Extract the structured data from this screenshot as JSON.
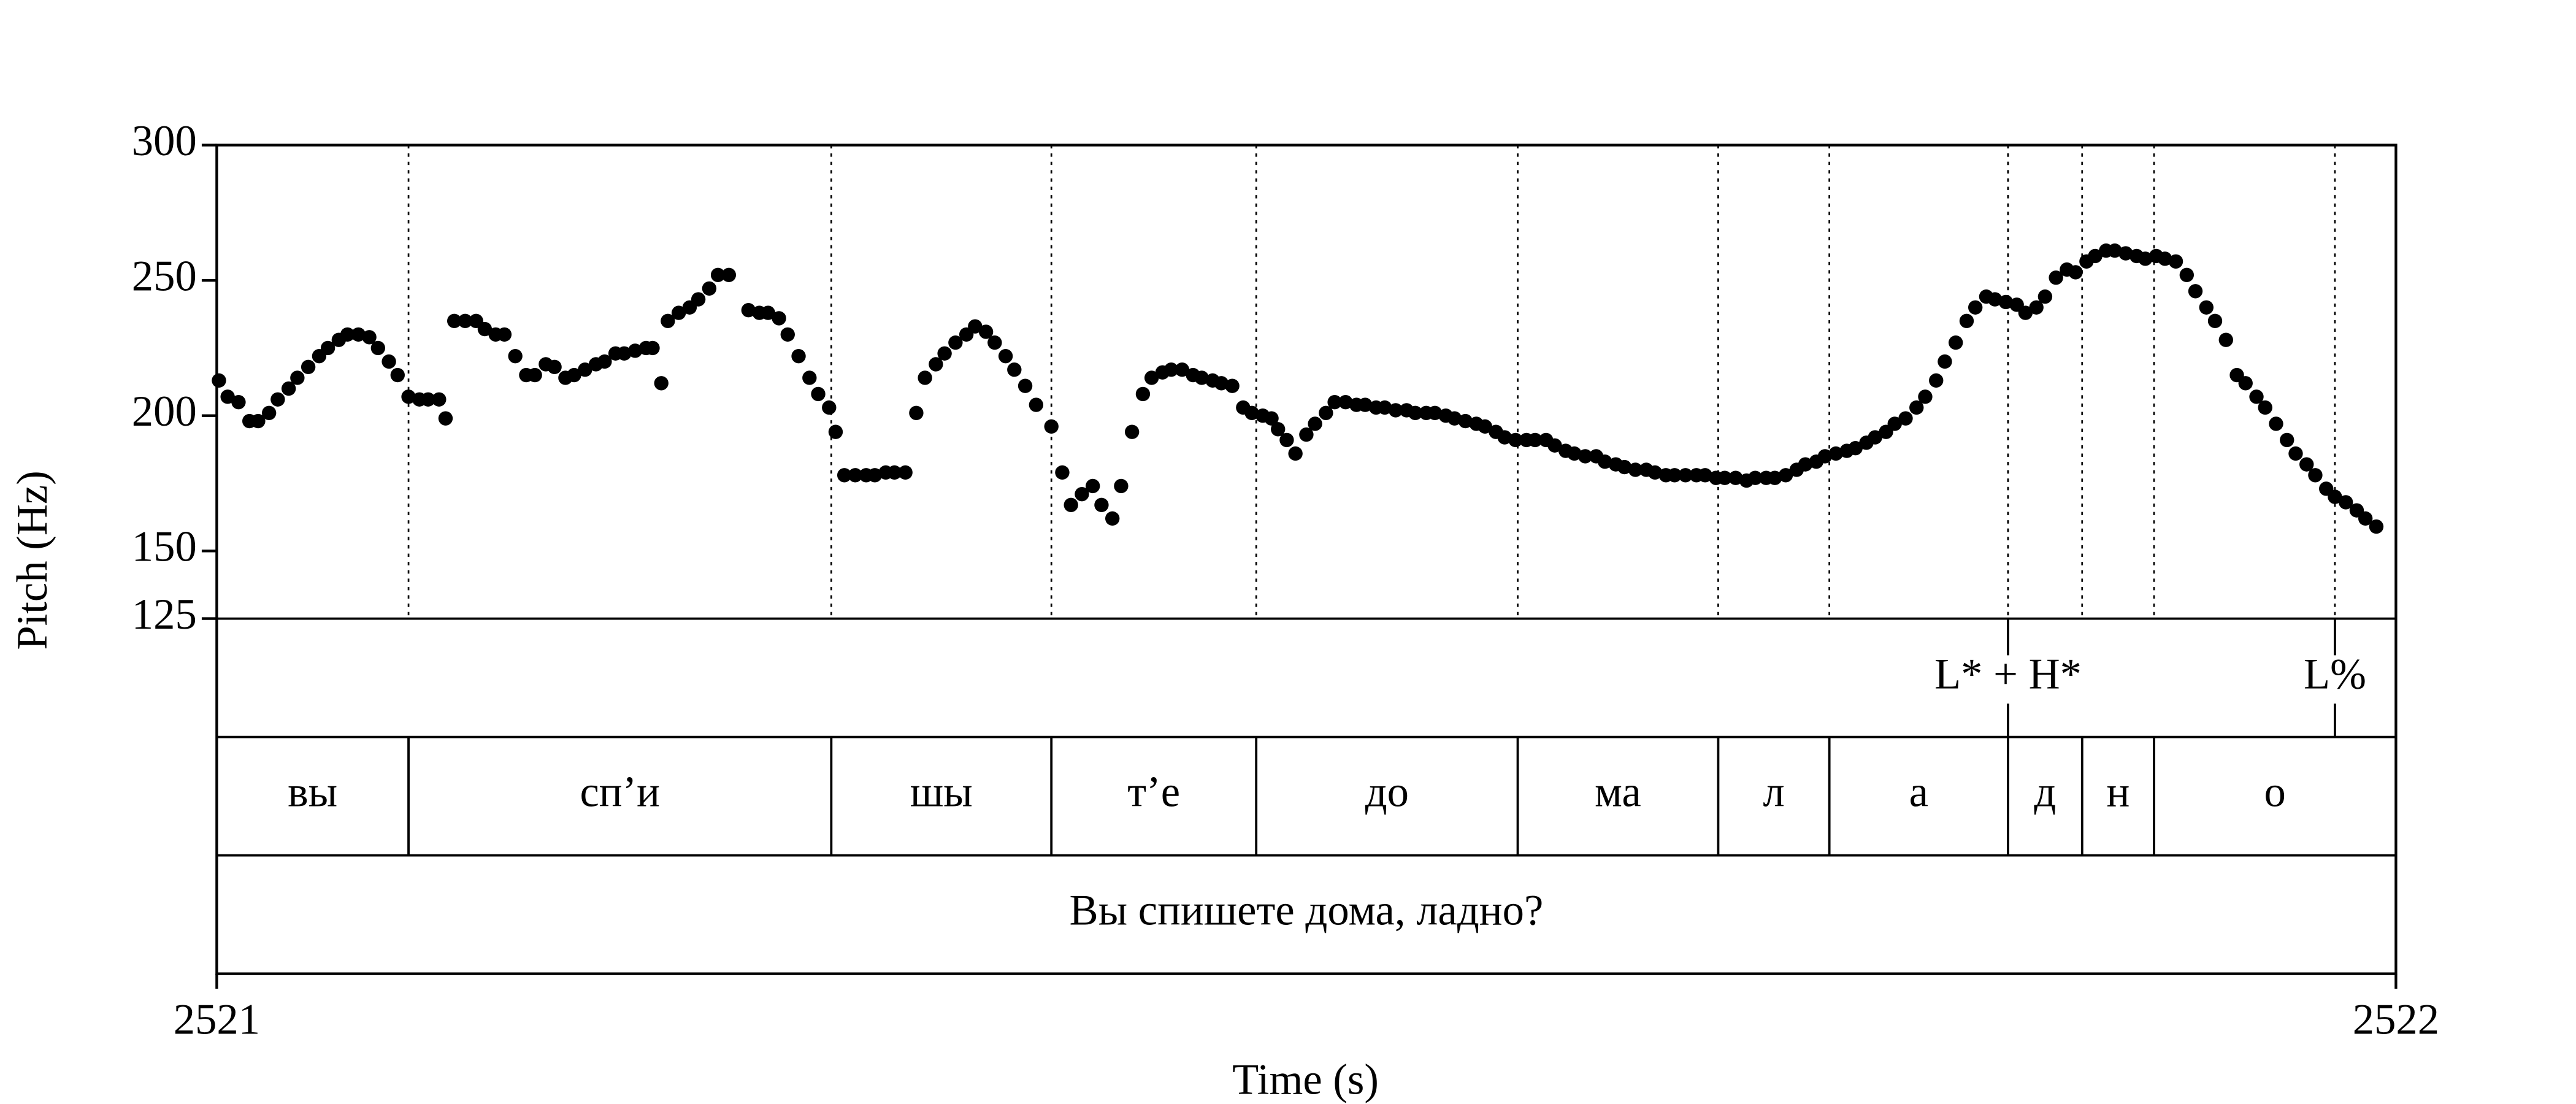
{
  "chart_data": {
    "type": "scatter",
    "xlabel": "Time (s)",
    "ylabel": "Pitch (Hz)",
    "xlim": [
      2521,
      2522
    ],
    "xticks": [
      2521,
      2522
    ],
    "ylim": [
      125,
      300
    ],
    "yticks": [
      125,
      150,
      200,
      250,
      300
    ],
    "x": [
      2521.001,
      2521.005,
      2521.01,
      2521.015,
      2521.019,
      2521.024,
      2521.028,
      2521.033,
      2521.037,
      2521.042,
      2521.047,
      2521.051,
      2521.056,
      2521.06,
      2521.065,
      2521.07,
      2521.074,
      2521.079,
      2521.083,
      2521.088,
      2521.093,
      2521.097,
      2521.102,
      2521.105,
      2521.109,
      2521.114,
      2521.119,
      2521.123,
      2521.128,
      2521.132,
      2521.137,
      2521.142,
      2521.146,
      2521.151,
      2521.155,
      2521.16,
      2521.164,
      2521.169,
      2521.174,
      2521.178,
      2521.183,
      2521.187,
      2521.192,
      2521.197,
      2521.2,
      2521.204,
      2521.207,
      2521.212,
      2521.217,
      2521.221,
      2521.226,
      2521.23,
      2521.235,
      2521.244,
      2521.249,
      2521.253,
      2521.258,
      2521.262,
      2521.267,
      2521.272,
      2521.276,
      2521.281,
      2521.284,
      2521.288,
      2521.293,
      2521.298,
      2521.302,
      2521.307,
      2521.311,
      2521.316,
      2521.321,
      2521.325,
      2521.33,
      2521.334,
      2521.339,
      2521.344,
      2521.348,
      2521.353,
      2521.357,
      2521.362,
      2521.366,
      2521.371,
      2521.376,
      2521.383,
      2521.388,
      2521.392,
      2521.397,
      2521.402,
      2521.406,
      2521.411,
      2521.415,
      2521.42,
      2521.425,
      2521.429,
      2521.434,
      2521.438,
      2521.443,
      2521.448,
      2521.452,
      2521.457,
      2521.461,
      2521.466,
      2521.471,
      2521.475,
      2521.48,
      2521.484,
      2521.487,
      2521.491,
      2521.495,
      2521.5,
      2521.504,
      2521.509,
      2521.513,
      2521.518,
      2521.523,
      2521.527,
      2521.532,
      2521.536,
      2521.541,
      2521.546,
      2521.55,
      2521.555,
      2521.559,
      2521.564,
      2521.568,
      2521.573,
      2521.578,
      2521.582,
      2521.587,
      2521.591,
      2521.596,
      2521.601,
      2521.605,
      2521.61,
      2521.614,
      2521.619,
      2521.623,
      2521.628,
      2521.633,
      2521.637,
      2521.642,
      2521.646,
      2521.651,
      2521.656,
      2521.66,
      2521.665,
      2521.669,
      2521.674,
      2521.679,
      2521.683,
      2521.688,
      2521.692,
      2521.697,
      2521.702,
      2521.706,
      2521.711,
      2521.715,
      2521.72,
      2521.725,
      2521.729,
      2521.734,
      2521.738,
      2521.743,
      2521.748,
      2521.752,
      2521.757,
      2521.761,
      2521.766,
      2521.77,
      2521.775,
      2521.78,
      2521.784,
      2521.789,
      2521.793,
      2521.798,
      2521.803,
      2521.807,
      2521.812,
      2521.816,
      2521.821,
      2521.826,
      2521.83,
      2521.835,
      2521.839,
      2521.844,
      2521.849,
      2521.853,
      2521.858,
      2521.862,
      2521.867,
      2521.871,
      2521.876,
      2521.881,
      2521.885,
      2521.89,
      2521.894,
      2521.899,
      2521.904,
      2521.908,
      2521.913,
      2521.917,
      2521.922,
      2521.927,
      2521.931,
      2521.936,
      2521.94,
      2521.945,
      2521.95,
      2521.954,
      2521.959,
      2521.963,
      2521.968,
      2521.972,
      2521.977,
      2521.982,
      2521.986,
      2521.991
    ],
    "series": [
      {
        "color": "#000000",
        "values": [
          213,
          207,
          205,
          198,
          198,
          201,
          206,
          210,
          214,
          218,
          222,
          225,
          228,
          230,
          230,
          229,
          225,
          220,
          215,
          207,
          206,
          206,
          206,
          199,
          235,
          235,
          235,
          232,
          230,
          230,
          222,
          215,
          215,
          219,
          218,
          214,
          215,
          217,
          219,
          220,
          223,
          223,
          224,
          225,
          225,
          212,
          235,
          238,
          240,
          243,
          247,
          252,
          252,
          239,
          238,
          238,
          236,
          230,
          222,
          214,
          208,
          203,
          194,
          178,
          178,
          178,
          178,
          179,
          179,
          179,
          201,
          214,
          219,
          223,
          227,
          230,
          233,
          231,
          227,
          222,
          217,
          211,
          204,
          196,
          179,
          167,
          171,
          174,
          167,
          162,
          174,
          194,
          208,
          214,
          216,
          217,
          217,
          215,
          214,
          213,
          212,
          211,
          203,
          201,
          200,
          199,
          195,
          191,
          186,
          193,
          197,
          201,
          205,
          205,
          204,
          204,
          203,
          203,
          202,
          202,
          201,
          201,
          201,
          200,
          199,
          198,
          197,
          196,
          194,
          192,
          191,
          191,
          191,
          191,
          189,
          187,
          186,
          185,
          185,
          183,
          182,
          181,
          180,
          180,
          179,
          178,
          178,
          178,
          178,
          178,
          177,
          177,
          177,
          176,
          177,
          177,
          177,
          178,
          180,
          182,
          183,
          185,
          186,
          187,
          188,
          190,
          192,
          194,
          197,
          199,
          203,
          207,
          213,
          220,
          227,
          235,
          240,
          244,
          243,
          242,
          241,
          238,
          240,
          244,
          251,
          254,
          253,
          257,
          259,
          261,
          261,
          260,
          259,
          258,
          259,
          258,
          257,
          252,
          246,
          240,
          235,
          228,
          215,
          212,
          207,
          203,
          197,
          191,
          186,
          182,
          178,
          173,
          170,
          168,
          165,
          162,
          159
        ]
      }
    ],
    "tiers": [
      {
        "points": [
          {
            "time": 2521.822,
            "label": "L* + H*"
          },
          {
            "time": 2521.972,
            "label": "L%"
          }
        ]
      },
      {
        "intervals": [
          {
            "start": 2521,
            "end": 2521.088,
            "label": "вы"
          },
          {
            "start": 2521.088,
            "end": 2521.282,
            "label": "сп’и"
          },
          {
            "start": 2521.282,
            "end": 2521.383,
            "label": "шы"
          },
          {
            "start": 2521.383,
            "end": 2521.477,
            "label": "т’е"
          },
          {
            "start": 2521.477,
            "end": 2521.597,
            "label": "до"
          },
          {
            "start": 2521.597,
            "end": 2521.689,
            "label": "ма"
          },
          {
            "start": 2521.689,
            "end": 2521.74,
            "label": "л"
          },
          {
            "start": 2521.74,
            "end": 2521.822,
            "label": "а"
          },
          {
            "start": 2521.822,
            "end": 2521.856,
            "label": "д"
          },
          {
            "start": 2521.856,
            "end": 2521.889,
            "label": "н"
          },
          {
            "start": 2521.889,
            "end": 2522,
            "label": "о"
          }
        ]
      },
      {
        "intervals": [
          {
            "start": 2521,
            "end": 2522,
            "label": "Вы спишете дома, ладно?"
          }
        ]
      }
    ]
  }
}
